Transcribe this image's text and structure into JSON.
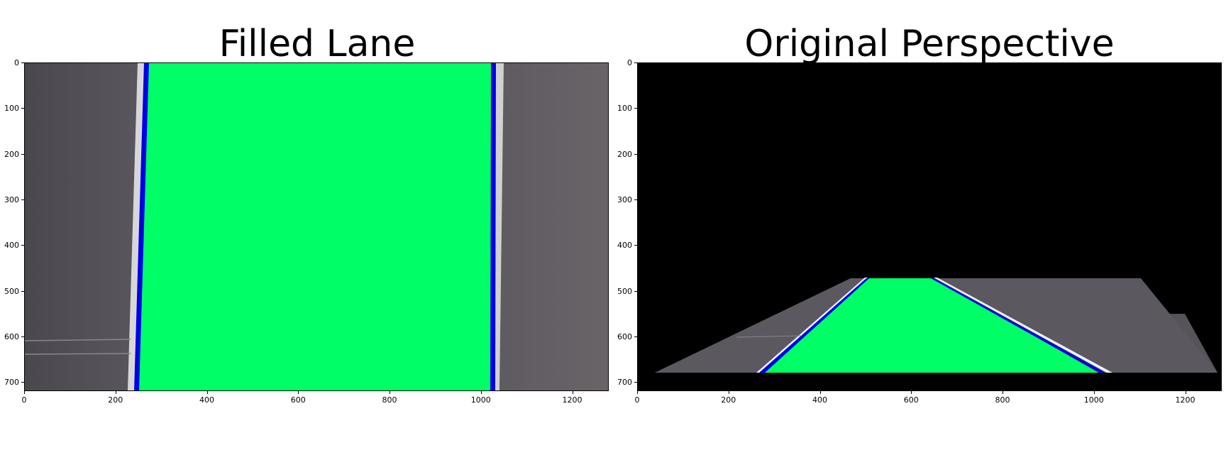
{
  "figure": {
    "left": {
      "title": "Filled Lane",
      "x_ticks": [
        "0",
        "200",
        "400",
        "600",
        "800",
        "1000",
        "1200"
      ],
      "y_ticks": [
        "0",
        "100",
        "200",
        "300",
        "400",
        "500",
        "600",
        "700"
      ]
    },
    "right": {
      "title": "Original Perspective",
      "x_ticks": [
        "0",
        "200",
        "400",
        "600",
        "800",
        "1000",
        "1200"
      ],
      "y_ticks": [
        "0",
        "100",
        "200",
        "300",
        "400",
        "500",
        "600",
        "700"
      ]
    }
  },
  "colors": {
    "road": "#57545a",
    "lane_fill": "#00ff66",
    "lane_line": "#0000e6",
    "background": "#000000",
    "marking": "#ffffff"
  },
  "image_extent": {
    "x_max": 1280,
    "y_max": 720
  }
}
